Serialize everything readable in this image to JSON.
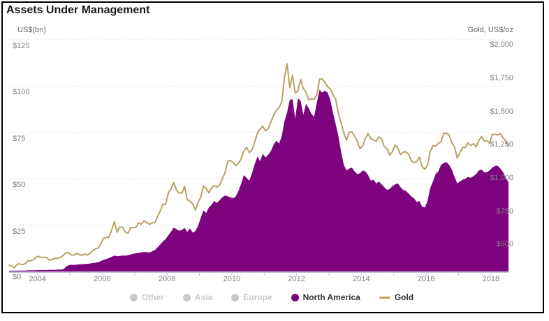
{
  "header": {
    "title": "Assets Under Management"
  },
  "axes": {
    "left_caption": "US$(bn)",
    "right_caption": "Gold, US$/oz",
    "left_ticks": [
      {
        "label": "$0",
        "value": 0
      },
      {
        "label": "$25",
        "value": 25
      },
      {
        "label": "$50",
        "value": 50
      },
      {
        "label": "$75",
        "value": 75
      },
      {
        "label": "$100",
        "value": 100
      },
      {
        "label": "$125",
        "value": 125
      }
    ],
    "right_ticks": [
      {
        "label": "$500",
        "value": 500
      },
      {
        "label": "$750",
        "value": 750
      },
      {
        "label": "$1,000",
        "value": 1000
      },
      {
        "label": "$1,250",
        "value": 1250
      },
      {
        "label": "$1,500",
        "value": 1500
      },
      {
        "label": "$1,750",
        "value": 1750
      },
      {
        "label": "$2,000",
        "value": 2000
      }
    ],
    "x_labels": [
      {
        "label": "2004",
        "year": 2004
      },
      {
        "label": "2006",
        "year": 2006
      },
      {
        "label": "2008",
        "year": 2008
      },
      {
        "label": "2010",
        "year": 2010
      },
      {
        "label": "2012",
        "year": 2012
      },
      {
        "label": "2014",
        "year": 2014
      },
      {
        "label": "2016",
        "year": 2016
      },
      {
        "label": "2018",
        "year": 2018
      }
    ],
    "x_tick_years": [
      2004,
      2005,
      2006,
      2007,
      2008,
      2009,
      2010,
      2011,
      2012,
      2013,
      2014,
      2015,
      2016,
      2017,
      2018
    ]
  },
  "legend": {
    "items": [
      {
        "label": "Other",
        "marker": "circle",
        "enabled": false
      },
      {
        "label": "Asia",
        "marker": "circle",
        "enabled": false
      },
      {
        "label": "Europe",
        "marker": "circle",
        "enabled": false
      },
      {
        "label": "North America",
        "marker": "circle",
        "enabled": true,
        "color": "#7c027e"
      },
      {
        "label": "Gold",
        "marker": "line",
        "enabled": true,
        "color": "#b9a164"
      }
    ],
    "disabled_color": "#c8c8c8",
    "enabled_text_color": "#333333"
  },
  "colors": {
    "north_america": "#7c027e",
    "gold": "#b9a164",
    "gridline": "#cccccc",
    "axis_line": "#c4c4d4",
    "axis_text": "#808080"
  },
  "chart_data": {
    "type": "area",
    "title": "Assets Under Management",
    "frequency": "monthly",
    "x_start": "2003-02",
    "x_end": "2018-07",
    "left_axis": {
      "label": "US$(bn)",
      "ylim": [
        0,
        125
      ],
      "ticks": [
        0,
        25,
        50,
        75,
        100,
        125
      ]
    },
    "right_axis": {
      "label": "Gold, US$/oz",
      "ylim": [
        300,
        2041
      ],
      "ticks": [
        500,
        750,
        1000,
        1250,
        1500,
        1750,
        2000
      ]
    },
    "grid": "dotted-horizontal",
    "legend_position": "bottom-center",
    "disabled_series": [
      "Other",
      "Asia",
      "Europe"
    ],
    "series": [
      {
        "name": "North America",
        "type": "area",
        "axis": "left",
        "color": "#7c027e",
        "values": [
          0.4,
          0.4,
          0.4,
          0.5,
          0.5,
          0.5,
          0.5,
          0.6,
          0.6,
          0.6,
          0.7,
          0.7,
          0.8,
          0.8,
          0.8,
          0.9,
          0.9,
          0.9,
          1.0,
          1.0,
          1.1,
          2.4,
          3.4,
          3.6,
          3.5,
          3.7,
          3.8,
          3.9,
          4.0,
          4.1,
          4.3,
          4.5,
          4.7,
          5.0,
          5.6,
          6.3,
          6.7,
          7.2,
          7.9,
          8.6,
          8.2,
          8.4,
          8.6,
          8.5,
          8.7,
          9.1,
          9.5,
          9.8,
          10.1,
          10.3,
          10.5,
          10.4,
          10.2,
          10.8,
          11.6,
          13.0,
          14.6,
          16.2,
          17.5,
          19.5,
          21.5,
          23.7,
          22.8,
          21.9,
          22.4,
          23.5,
          21.3,
          23.3,
          21.0,
          21.8,
          24.5,
          29.0,
          33.0,
          31.5,
          34.5,
          36.0,
          38.0,
          37.0,
          38.5,
          40.0,
          41.0,
          40.5,
          40.0,
          39.5,
          40.5,
          43.5,
          47.5,
          52.0,
          50.5,
          49.0,
          53.0,
          58.0,
          62.0,
          59.5,
          63.5,
          61.5,
          63.0,
          65.0,
          68.5,
          70.5,
          69.0,
          73.0,
          81.0,
          86.0,
          92.5,
          93.0,
          82.5,
          93.5,
          92.0,
          84.5,
          90.5,
          88.0,
          85.0,
          83.5,
          91.0,
          98.0,
          96.5,
          97.5,
          96.5,
          92.5,
          85.5,
          79.5,
          73.0,
          64.5,
          57.5,
          54.5,
          55.5,
          56.0,
          54.0,
          52.5,
          53.0,
          54.5,
          54.0,
          52.0,
          49.0,
          49.5,
          47.5,
          48.5,
          47.0,
          45.5,
          44.0,
          44.5,
          46.0,
          47.0,
          47.5,
          45.5,
          44.0,
          43.5,
          42.0,
          40.5,
          39.5,
          37.5,
          38.0,
          35.0,
          34.5,
          38.0,
          45.0,
          48.5,
          52.5,
          54.0,
          57.5,
          58.5,
          59.0,
          57.5,
          55.0,
          51.0,
          47.5,
          48.5,
          49.5,
          50.0,
          51.0,
          50.5,
          51.5,
          52.5,
          54.5,
          55.0,
          53.5,
          53.5,
          54.5,
          56.0,
          57.0,
          57.0,
          55.5,
          53.5,
          50.5,
          48.0
        ]
      },
      {
        "name": "Gold",
        "type": "line",
        "axis": "right",
        "color": "#b9a164",
        "values": [
          347,
          340,
          328,
          355,
          356,
          351,
          360,
          379,
          379,
          389,
          407,
          414,
          405,
          406,
          403,
          383,
          392,
          398,
          400,
          405,
          420,
          439,
          442,
          424,
          423,
          434,
          429,
          421,
          430,
          424,
          437,
          456,
          470,
          476,
          510,
          550,
          555,
          557,
          611,
          675,
          596,
          634,
          632,
          598,
          586,
          628,
          630,
          631,
          665,
          655,
          680,
          667,
          655,
          665,
          665,
          713,
          755,
          806,
          803,
          890,
          922,
          968,
          910,
          889,
          889,
          940,
          839,
          830,
          807,
          761,
          816,
          858,
          943,
          924,
          890,
          929,
          946,
          934,
          949,
          997,
          1043,
          1127,
          1135,
          1118,
          1095,
          1113,
          1149,
          1205,
          1233,
          1193,
          1216,
          1271,
          1342,
          1370,
          1391,
          1356,
          1374,
          1424,
          1474,
          1511,
          1529,
          1573,
          1757,
          1860,
          1680,
          1775,
          1641,
          1656,
          1743,
          1674,
          1650,
          1589,
          1598,
          1594,
          1626,
          1745,
          1747,
          1721,
          1688,
          1671,
          1627,
          1593,
          1487,
          1414,
          1343,
          1287,
          1347,
          1349,
          1316,
          1276,
          1222,
          1244,
          1300,
          1336,
          1299,
          1288,
          1279,
          1311,
          1296,
          1238,
          1223,
          1176,
          1200,
          1251,
          1227,
          1179,
          1198,
          1199,
          1181,
          1130,
          1117,
          1125,
          1159,
          1086,
          1068,
          1098,
          1200,
          1246,
          1242,
          1261,
          1276,
          1337,
          1340,
          1327,
          1267,
          1238,
          1152,
          1192,
          1234,
          1231,
          1266,
          1246,
          1260,
          1237,
          1283,
          1314,
          1280,
          1282,
          1264,
          1331,
          1330,
          1325,
          1335,
          1303,
          1281,
          1238
        ]
      }
    ]
  }
}
